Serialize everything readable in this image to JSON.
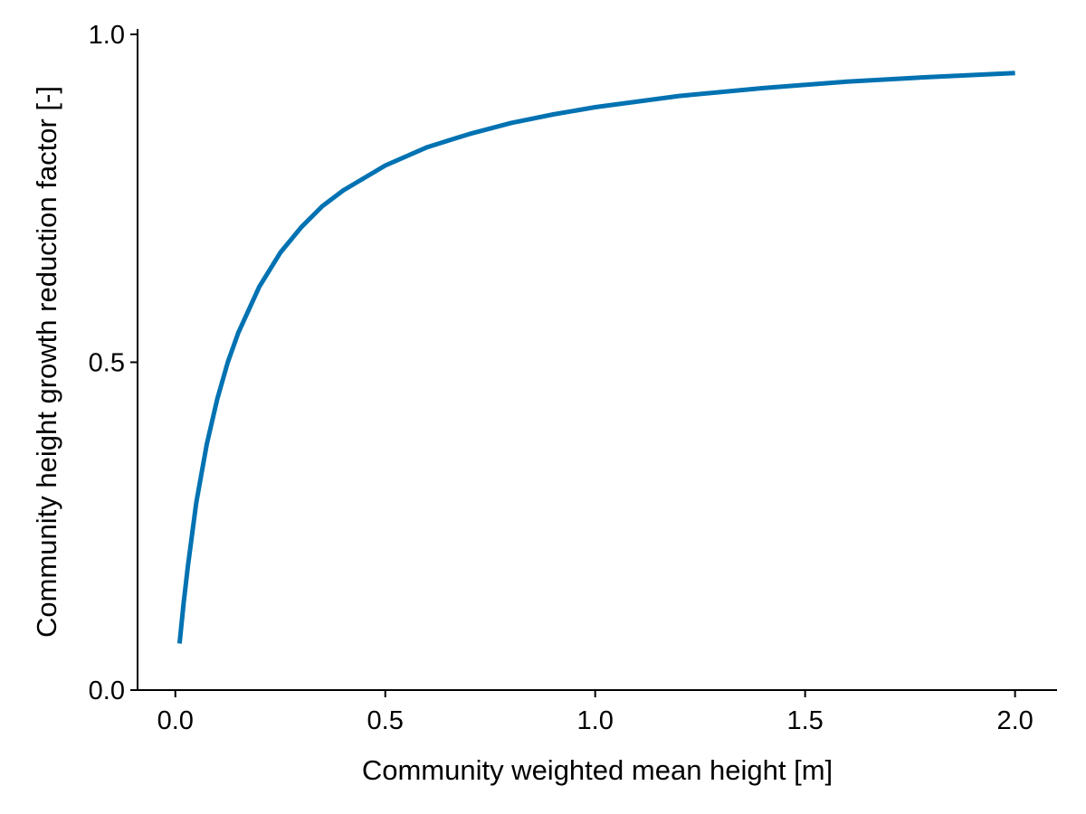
{
  "chart_data": {
    "type": "line",
    "title": "",
    "xlabel": "Community weighted mean height [m]",
    "ylabel": "Community height growth reduction factor [-]",
    "xlim": [
      -0.09,
      2.1
    ],
    "ylim": [
      0.0,
      1.0
    ],
    "x_ticks": [
      0.0,
      0.5,
      1.0,
      1.5,
      2.0
    ],
    "x_tick_labels": [
      "0.0",
      "0.5",
      "1.0",
      "1.5",
      "2.0"
    ],
    "y_ticks": [
      0.0,
      0.5,
      1.0
    ],
    "y_tick_labels": [
      "0.0",
      "0.5",
      "1.0"
    ],
    "grid": false,
    "legend": "none",
    "series": [
      {
        "color": "#0072b2",
        "x": [
          0.01,
          0.02,
          0.03,
          0.05,
          0.075,
          0.1,
          0.125,
          0.15,
          0.2,
          0.25,
          0.3,
          0.35,
          0.4,
          0.5,
          0.6,
          0.7,
          0.8,
          0.9,
          1.0,
          1.2,
          1.4,
          1.6,
          1.8,
          2.0
        ],
        "y": [
          0.071,
          0.134,
          0.19,
          0.286,
          0.375,
          0.444,
          0.5,
          0.545,
          0.615,
          0.667,
          0.706,
          0.738,
          0.762,
          0.8,
          0.828,
          0.848,
          0.865,
          0.878,
          0.889,
          0.906,
          0.918,
          0.928,
          0.935,
          0.941
        ]
      }
    ]
  }
}
